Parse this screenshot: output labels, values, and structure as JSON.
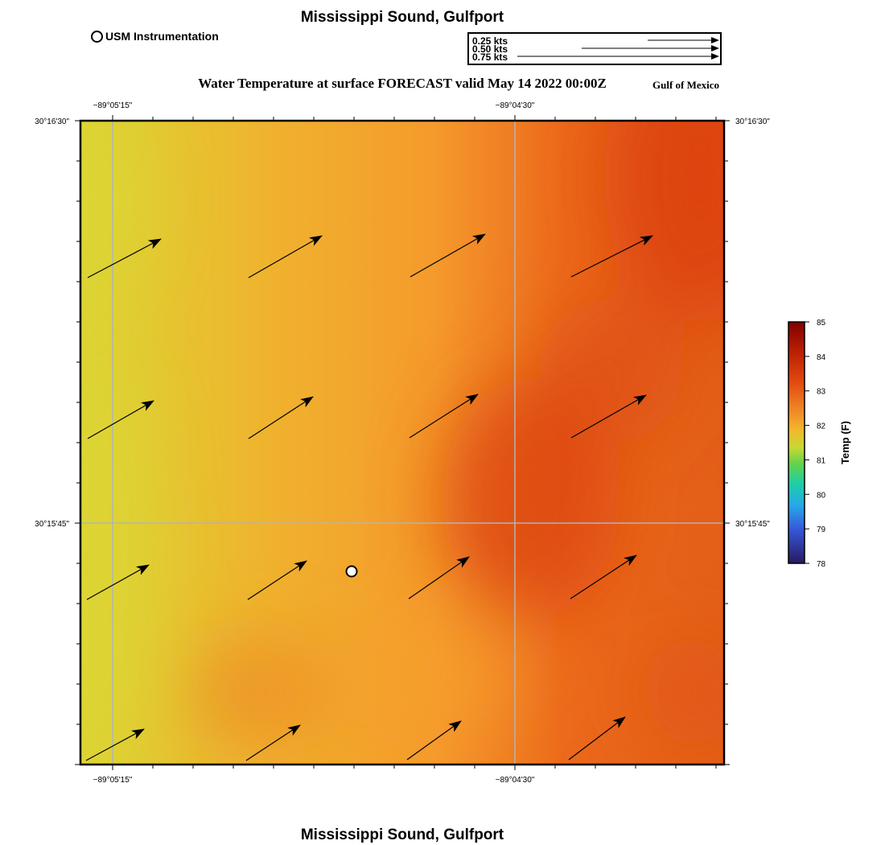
{
  "header": {
    "top_title": "Mississippi Sound, Gulfport",
    "bottom_title": "Mississippi Sound, Gulfport",
    "station_legend_label": "USM Instrumentation",
    "main_title": "Water Temperature at surface FORECAST valid May 14 2022 00:00Z",
    "region_label": "Gulf of Mexico"
  },
  "vector_legend": [
    {
      "label": "0.25 kts",
      "speed_kts": 0.25
    },
    {
      "label": "0.50 kts",
      "speed_kts": 0.5
    },
    {
      "label": "0.75 kts",
      "speed_kts": 0.75
    }
  ],
  "map": {
    "lon_labels": [
      "−89°05'15\"",
      "−89°04'30\""
    ],
    "lat_labels": [
      "30°16'30\"",
      "30°15'45\""
    ],
    "station_marker": "USM Instrumentation"
  },
  "colorbar": {
    "title": "Temp (F)",
    "min": 78,
    "max": 85,
    "ticks": [
      "85",
      "84",
      "83",
      "82",
      "81",
      "80",
      "79",
      "78"
    ],
    "colors": [
      "#800000",
      "#c92a06",
      "#ee6a1f",
      "#f4a02a",
      "#cfd530",
      "#6ed34b",
      "#1fcda8",
      "#2f8fe8",
      "#3a4fd6",
      "#2a1a6a"
    ]
  },
  "field_colors": {
    "cool": "#dcd534",
    "mid": "#f59a2c",
    "warm": "#e0450a"
  }
}
